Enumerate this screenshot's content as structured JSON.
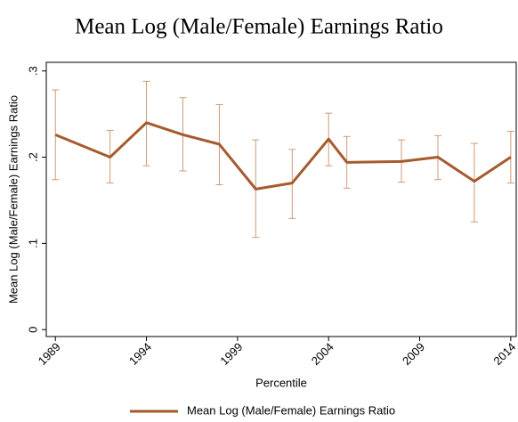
{
  "chart_data": {
    "type": "line",
    "title": "Mean Log (Male/Female) Earnings Ratio",
    "xlabel": "Percentile",
    "ylabel": "Mean Log (Male/Female) Earnings Ratio",
    "x": [
      1989,
      1992,
      1994,
      1996,
      1998,
      2000,
      2002,
      2004,
      2005,
      2008,
      2010,
      2012,
      2014
    ],
    "series": [
      {
        "name": "Mean Log (Male/Female) Earnings Ratio",
        "color": "#a65a2e",
        "error_color": "#cf9a76",
        "values": [
          0.226,
          0.2,
          0.24,
          0.226,
          0.215,
          0.163,
          0.17,
          0.221,
          0.194,
          0.195,
          0.2,
          0.172,
          0.2
        ],
        "lower": [
          0.174,
          0.17,
          0.19,
          0.184,
          0.168,
          0.107,
          0.129,
          0.19,
          0.164,
          0.171,
          0.174,
          0.125,
          0.17
        ],
        "upper": [
          0.278,
          0.231,
          0.288,
          0.269,
          0.261,
          0.22,
          0.209,
          0.251,
          0.224,
          0.22,
          0.225,
          0.216,
          0.23
        ]
      }
    ],
    "xlim": [
      1988.5,
      2014.3
    ],
    "xticks": [
      1989,
      1994,
      1999,
      2004,
      2009,
      2014
    ],
    "ylim": [
      -0.008,
      0.31
    ],
    "yticks": [
      0,
      {
        "value": 0.1,
        "label": ".1"
      },
      {
        "value": 0.2,
        "label": ".2"
      },
      {
        "value": 0.3,
        "label": ".3"
      }
    ],
    "grid": false,
    "legend": "bottom"
  }
}
